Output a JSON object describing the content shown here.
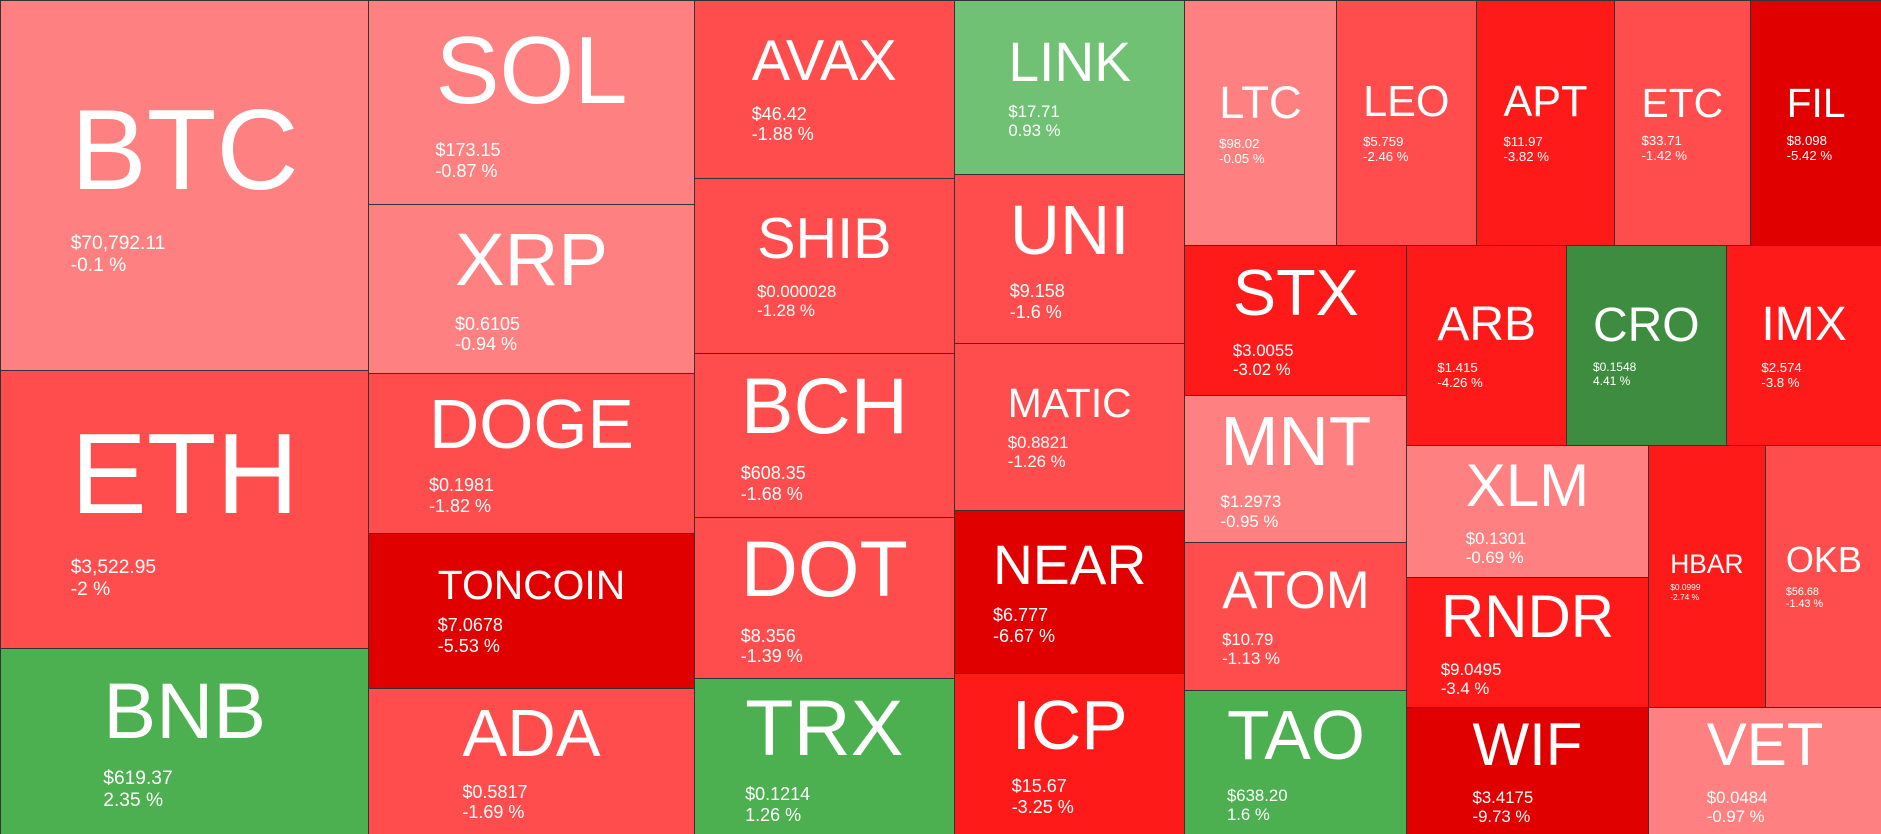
{
  "colors": {
    "light_red": "#ff8080",
    "red": "#ff4d4d",
    "bright_red": "#ff1a1a",
    "dark_red": "#e00000",
    "light_green": "#70c173",
    "green": "#4caf50",
    "dark_green": "#3d8c40"
  },
  "tiles": [
    {
      "symbol": "BTC",
      "price": "$70,792.11",
      "change": "-0.1 %",
      "color": "#ff8080"
    },
    {
      "symbol": "ETH",
      "price": "$3,522.95",
      "change": "-2 %",
      "color": "#ff4d4d"
    },
    {
      "symbol": "BNB",
      "price": "$619.37",
      "change": "2.35 %",
      "color": "#4caf50"
    },
    {
      "symbol": "SOL",
      "price": "$173.15",
      "change": "-0.87 %",
      "color": "#ff8080"
    },
    {
      "symbol": "XRP",
      "price": "$0.6105",
      "change": "-0.94 %",
      "color": "#ff8080"
    },
    {
      "symbol": "DOGE",
      "price": "$0.1981",
      "change": "-1.82 %",
      "color": "#ff4d4d"
    },
    {
      "symbol": "TONCOIN",
      "price": "$7.0678",
      "change": "-5.53 %",
      "color": "#e00000"
    },
    {
      "symbol": "ADA",
      "price": "$0.5817",
      "change": "-1.69 %",
      "color": "#ff4d4d"
    },
    {
      "symbol": "AVAX",
      "price": "$46.42",
      "change": "-1.88 %",
      "color": "#ff4d4d"
    },
    {
      "symbol": "SHIB",
      "price": "$0.000028",
      "change": "-1.28 %",
      "color": "#ff4d4d"
    },
    {
      "symbol": "BCH",
      "price": "$608.35",
      "change": "-1.68 %",
      "color": "#ff4d4d"
    },
    {
      "symbol": "DOT",
      "price": "$8.356",
      "change": "-1.39 %",
      "color": "#ff4d4d"
    },
    {
      "symbol": "TRX",
      "price": "$0.1214",
      "change": "1.26 %",
      "color": "#4caf50"
    },
    {
      "symbol": "LINK",
      "price": "$17.71",
      "change": "0.93 %",
      "color": "#70c173"
    },
    {
      "symbol": "UNI",
      "price": "$9.158",
      "change": "-1.6 %",
      "color": "#ff4d4d"
    },
    {
      "symbol": "MATIC",
      "price": "$0.8821",
      "change": "-1.26 %",
      "color": "#ff4d4d"
    },
    {
      "symbol": "NEAR",
      "price": "$6.777",
      "change": "-6.67 %",
      "color": "#e00000"
    },
    {
      "symbol": "ICP",
      "price": "$15.67",
      "change": "-3.25 %",
      "color": "#ff1a1a"
    },
    {
      "symbol": "LTC",
      "price": "$98.02",
      "change": "-0.05 %",
      "color": "#ff8080"
    },
    {
      "symbol": "LEO",
      "price": "$5.759",
      "change": "-2.46 %",
      "color": "#ff4d4d"
    },
    {
      "symbol": "APT",
      "price": "$11.97",
      "change": "-3.82 %",
      "color": "#ff1a1a"
    },
    {
      "symbol": "ETC",
      "price": "$33.71",
      "change": "-1.42 %",
      "color": "#ff4d4d"
    },
    {
      "symbol": "FIL",
      "price": "$8.098",
      "change": "-5.42 %",
      "color": "#e00000"
    },
    {
      "symbol": "STX",
      "price": "$3.0055",
      "change": "-3.02 %",
      "color": "#ff1a1a"
    },
    {
      "symbol": "MNT",
      "price": "$1.2973",
      "change": "-0.95 %",
      "color": "#ff8080"
    },
    {
      "symbol": "ATOM",
      "price": "$10.79",
      "change": "-1.13 %",
      "color": "#ff4d4d"
    },
    {
      "symbol": "TAO",
      "price": "$638.20",
      "change": "1.6 %",
      "color": "#4caf50"
    },
    {
      "symbol": "ARB",
      "price": "$1.415",
      "change": "-4.26 %",
      "color": "#ff1a1a"
    },
    {
      "symbol": "CRO",
      "price": "$0.1548",
      "change": "4.41 %",
      "color": "#3d8c40"
    },
    {
      "symbol": "IMX",
      "price": "$2.574",
      "change": "-3.8 %",
      "color": "#ff1a1a"
    },
    {
      "symbol": "XLM",
      "price": "$0.1301",
      "change": "-0.69 %",
      "color": "#ff8080"
    },
    {
      "symbol": "RNDR",
      "price": "$9.0495",
      "change": "-3.4 %",
      "color": "#ff1a1a"
    },
    {
      "symbol": "WIF",
      "price": "$3.4175",
      "change": "-9.73 %",
      "color": "#e00000"
    },
    {
      "symbol": "HBAR",
      "price": "$0.0999",
      "change": "-2.74 %",
      "color": "#ff1a1a"
    },
    {
      "symbol": "OKB",
      "price": "$56.68",
      "change": "-1.43 %",
      "color": "#ff4d4d"
    },
    {
      "symbol": "VET",
      "price": "$0.0484",
      "change": "-0.97 %",
      "color": "#ff8080"
    }
  ]
}
